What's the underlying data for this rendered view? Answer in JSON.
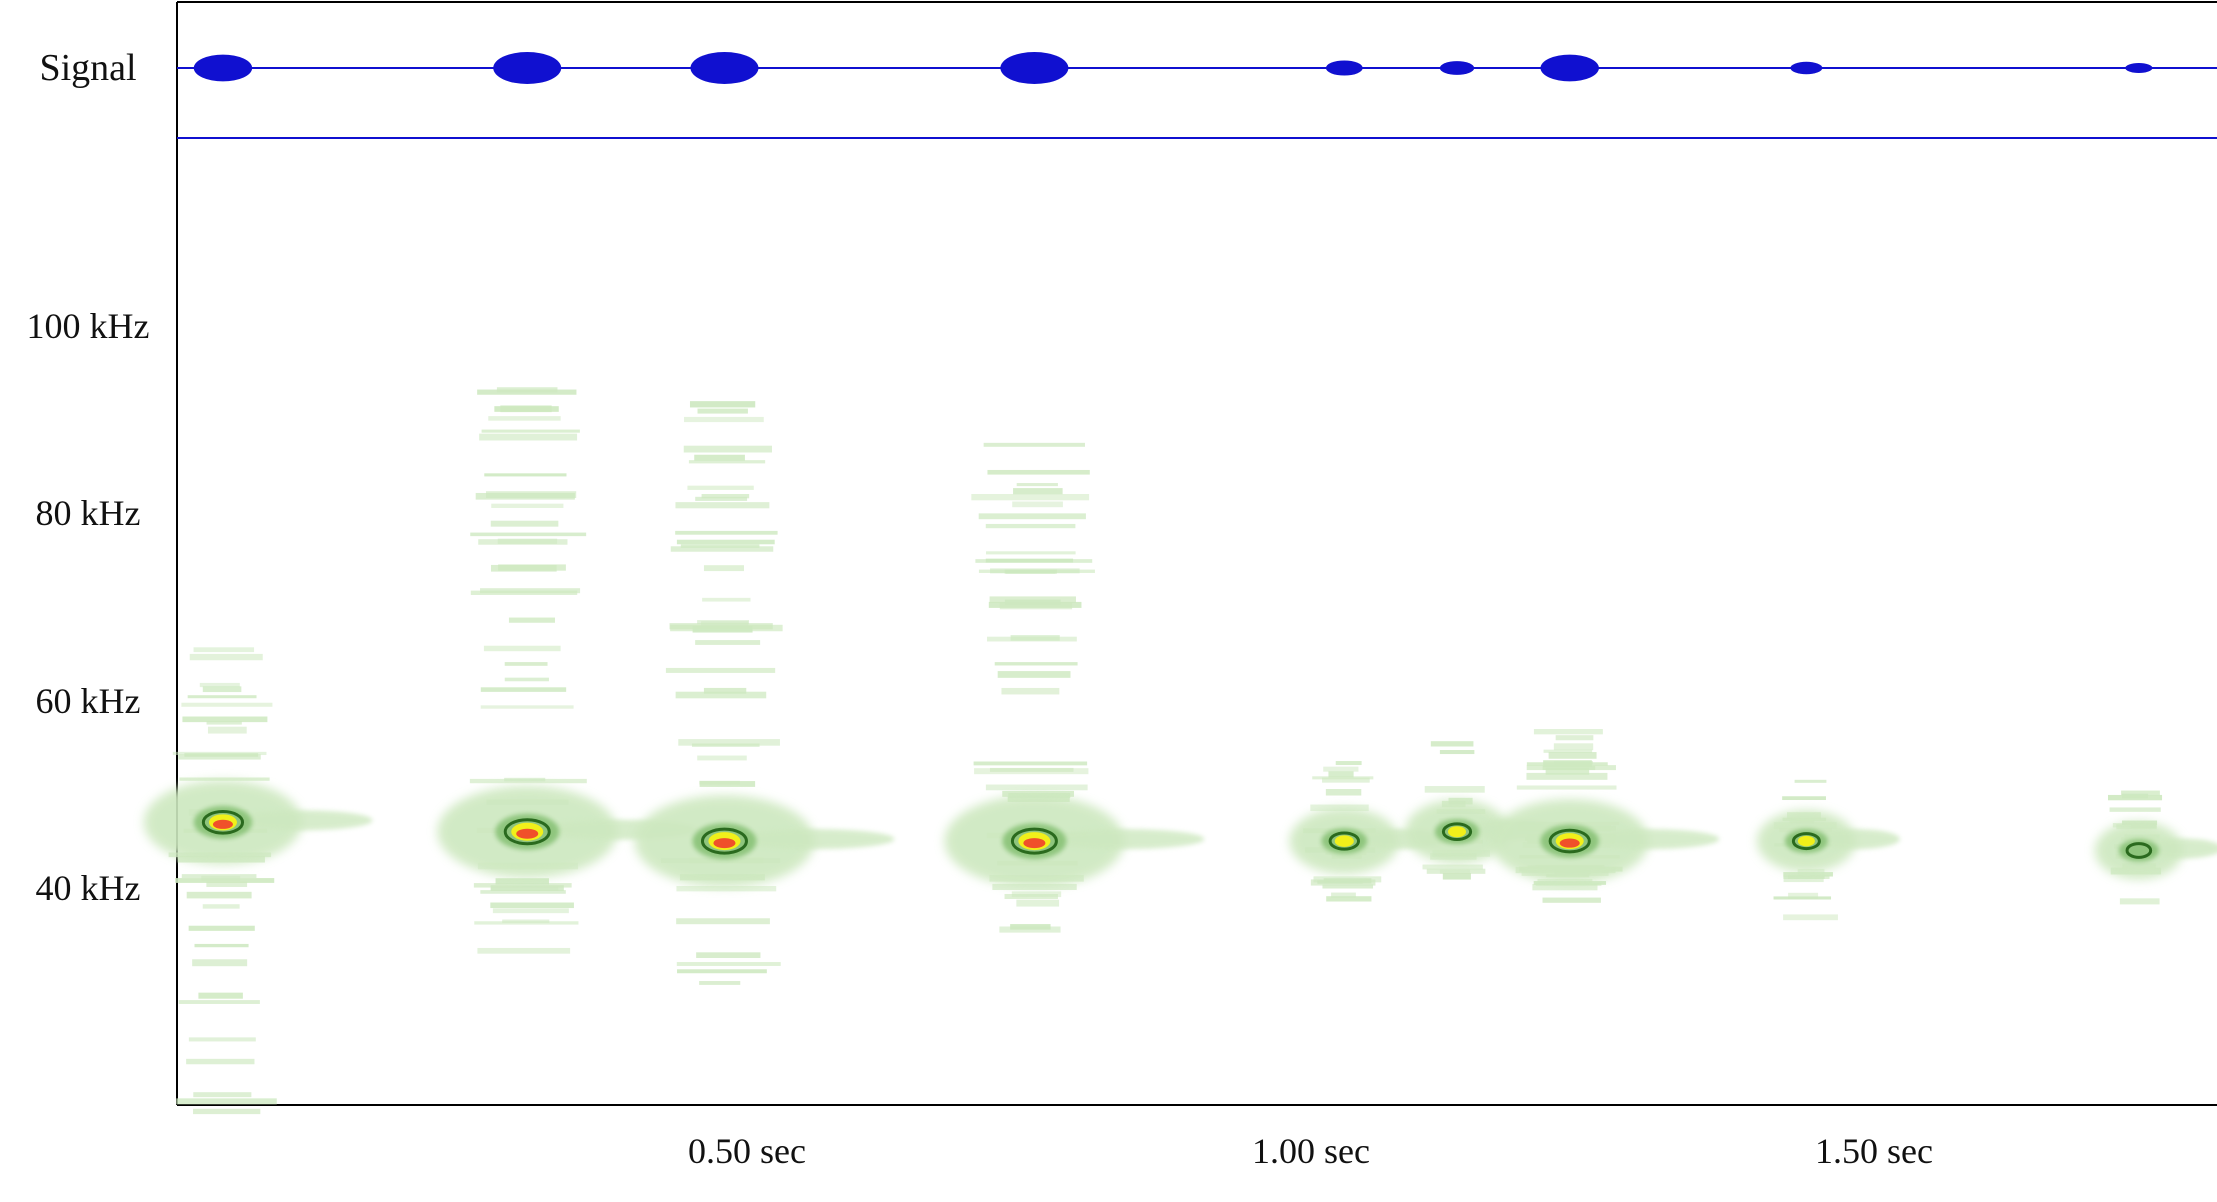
{
  "chart_data": {
    "type": "heatmap",
    "title": "",
    "signal_label": "Signal",
    "x_unit": "sec",
    "y_unit": "kHz",
    "xlim": [
      0,
      1.77
    ],
    "ylim": [
      15,
      126
    ],
    "x_ticks": [
      0.5,
      1.0,
      1.5
    ],
    "x_tick_labels": [
      "0.50 sec",
      "1.00 sec",
      "1.50 sec"
    ],
    "y_ticks": [
      40,
      60,
      80,
      100
    ],
    "y_tick_labels": [
      "40 kHz",
      "60 kHz",
      "80 kHz",
      "100 kHz"
    ],
    "grid": false,
    "colors": {
      "axis": "#000000",
      "signal": "#1010d0",
      "weak": "#cde8bf",
      "mid": "#8cc47a",
      "strong": "#2a6a1e",
      "peak": "#f1f01a",
      "max": "#f0502a"
    },
    "calls": [
      {
        "t": 0.035,
        "peak_khz": 47,
        "amp": 0.8,
        "lo_khz": 16,
        "hi_khz": 66
      },
      {
        "t": 0.305,
        "peak_khz": 46,
        "amp": 1.0,
        "lo_khz": 33,
        "hi_khz": 97
      },
      {
        "t": 0.48,
        "peak_khz": 45,
        "amp": 1.0,
        "lo_khz": 30,
        "hi_khz": 92
      },
      {
        "t": 0.755,
        "peak_khz": 45,
        "amp": 1.0,
        "lo_khz": 35,
        "hi_khz": 90
      },
      {
        "t": 1.03,
        "peak_khz": 45,
        "amp": 0.35,
        "lo_khz": 39,
        "hi_khz": 54
      },
      {
        "t": 1.13,
        "peak_khz": 46,
        "amp": 0.3,
        "lo_khz": 41,
        "hi_khz": 57
      },
      {
        "t": 1.23,
        "peak_khz": 45,
        "amp": 0.8,
        "lo_khz": 38,
        "hi_khz": 57
      },
      {
        "t": 1.44,
        "peak_khz": 45,
        "amp": 0.25,
        "lo_khz": 37,
        "hi_khz": 52
      },
      {
        "t": 1.735,
        "peak_khz": 44,
        "amp": 0.15,
        "lo_khz": 38,
        "hi_khz": 52
      }
    ]
  }
}
